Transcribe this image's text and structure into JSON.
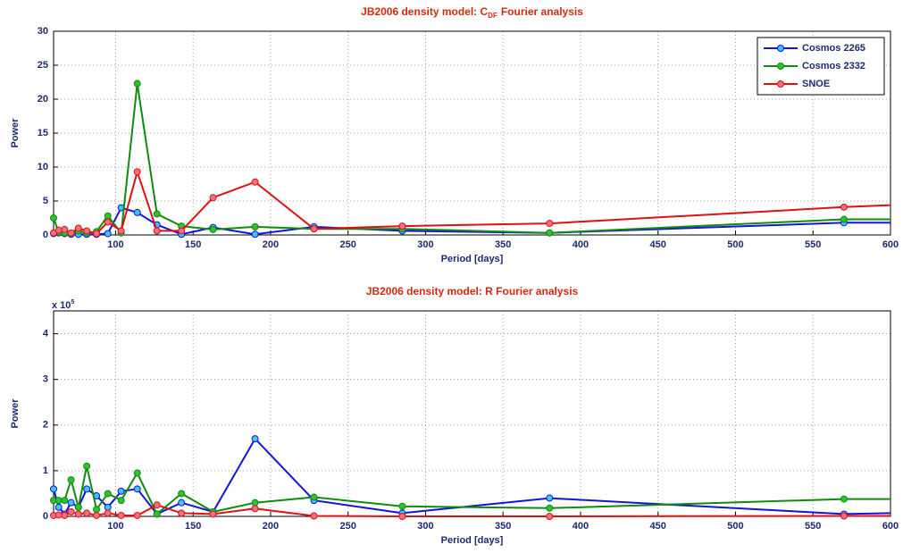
{
  "chart_data": [
    {
      "type": "line",
      "title": "JB2006 density model: C",
      "title_subscript": "DF",
      "title_end": "Fourier analysis",
      "x_label": "Period [days]",
      "y_label": "Power",
      "x": [
        60,
        63.3,
        67.1,
        71.3,
        76,
        81.4,
        87.7,
        95,
        103.6,
        114,
        126.7,
        142.5,
        162.9,
        190,
        228,
        285,
        380,
        570,
        1140
      ],
      "xlim": [
        60,
        600
      ],
      "xticks": [
        100,
        150,
        200,
        250,
        300,
        350,
        400,
        450,
        500,
        550,
        600
      ],
      "ylim": [
        0,
        30
      ],
      "yticks": [
        0,
        5,
        10,
        15,
        20,
        25,
        30
      ],
      "grid": true,
      "legend": "northeast",
      "series": [
        {
          "name": "Cosmos 2265",
          "color": "#1414d8",
          "marker_color": "#3cc8f0",
          "values": [
            0.2,
            0.3,
            0.2,
            0.1,
            0.1,
            0.1,
            0.1,
            0.2,
            4.0,
            3.3,
            1.5,
            0.1,
            1.1,
            0.1,
            1.2,
            0.6,
            0.3,
            1.8,
            2.0
          ]
        },
        {
          "name": "Cosmos 2332",
          "color": "#108a10",
          "marker_color": "#30c030",
          "values": [
            2.5,
            0.4,
            0.3,
            0.2,
            0.6,
            0.3,
            0.5,
            2.8,
            0.3,
            22.3,
            3.1,
            1.3,
            0.8,
            1.2,
            0.9,
            0.9,
            0.3,
            2.3,
            2.2
          ]
        },
        {
          "name": "SNOE",
          "color": "#e01010",
          "marker_color": "#f07080",
          "values": [
            0.3,
            0.7,
            0.8,
            0.3,
            1.0,
            0.6,
            0.2,
            1.9,
            0.6,
            9.3,
            0.6,
            0.6,
            5.5,
            7.8,
            0.9,
            1.3,
            1.7,
            4.1,
            9.5
          ]
        }
      ]
    },
    {
      "type": "line",
      "title": "JB2006 density model: R Fourier analysis",
      "x_label": "Period [days]",
      "y_label": "Power",
      "y_scale_label": "x 10",
      "y_scale_exponent": "5",
      "x": [
        60,
        63.3,
        67.1,
        71.3,
        76,
        81.4,
        87.7,
        95,
        103.6,
        114,
        126.7,
        142.5,
        162.9,
        190,
        228,
        285,
        380,
        570,
        1140
      ],
      "xlim": [
        60,
        600
      ],
      "xticks": [
        100,
        150,
        200,
        250,
        300,
        350,
        400,
        450,
        500,
        550,
        600
      ],
      "ylim": [
        0,
        4.5
      ],
      "yticks": [
        0,
        1,
        2,
        3,
        4
      ],
      "grid": true,
      "series": [
        {
          "color": "#1414d8",
          "marker_color": "#3cc8f0",
          "values": [
            0.6,
            0.2,
            0.05,
            0.3,
            0.2,
            0.6,
            0.45,
            0.2,
            0.55,
            0.6,
            0.05,
            0.3,
            0.1,
            1.7,
            0.35,
            0.07,
            0.4,
            0.05,
            0.43
          ]
        },
        {
          "color": "#108a10",
          "marker_color": "#30c030",
          "values": [
            0.35,
            0.35,
            0.35,
            0.8,
            0.2,
            1.1,
            0.15,
            0.5,
            0.35,
            0.95,
            0.05,
            0.5,
            0.1,
            0.3,
            0.42,
            0.22,
            0.18,
            0.38,
            0.38
          ]
        },
        {
          "color": "#e01010",
          "marker_color": "#f07080",
          "values": [
            0.02,
            0.03,
            0.02,
            0.1,
            0.05,
            0.07,
            0.02,
            0.07,
            0.02,
            0.02,
            0.25,
            0.07,
            0.05,
            0.17,
            0.01,
            0,
            0,
            0.01,
            0.01
          ]
        }
      ]
    }
  ]
}
